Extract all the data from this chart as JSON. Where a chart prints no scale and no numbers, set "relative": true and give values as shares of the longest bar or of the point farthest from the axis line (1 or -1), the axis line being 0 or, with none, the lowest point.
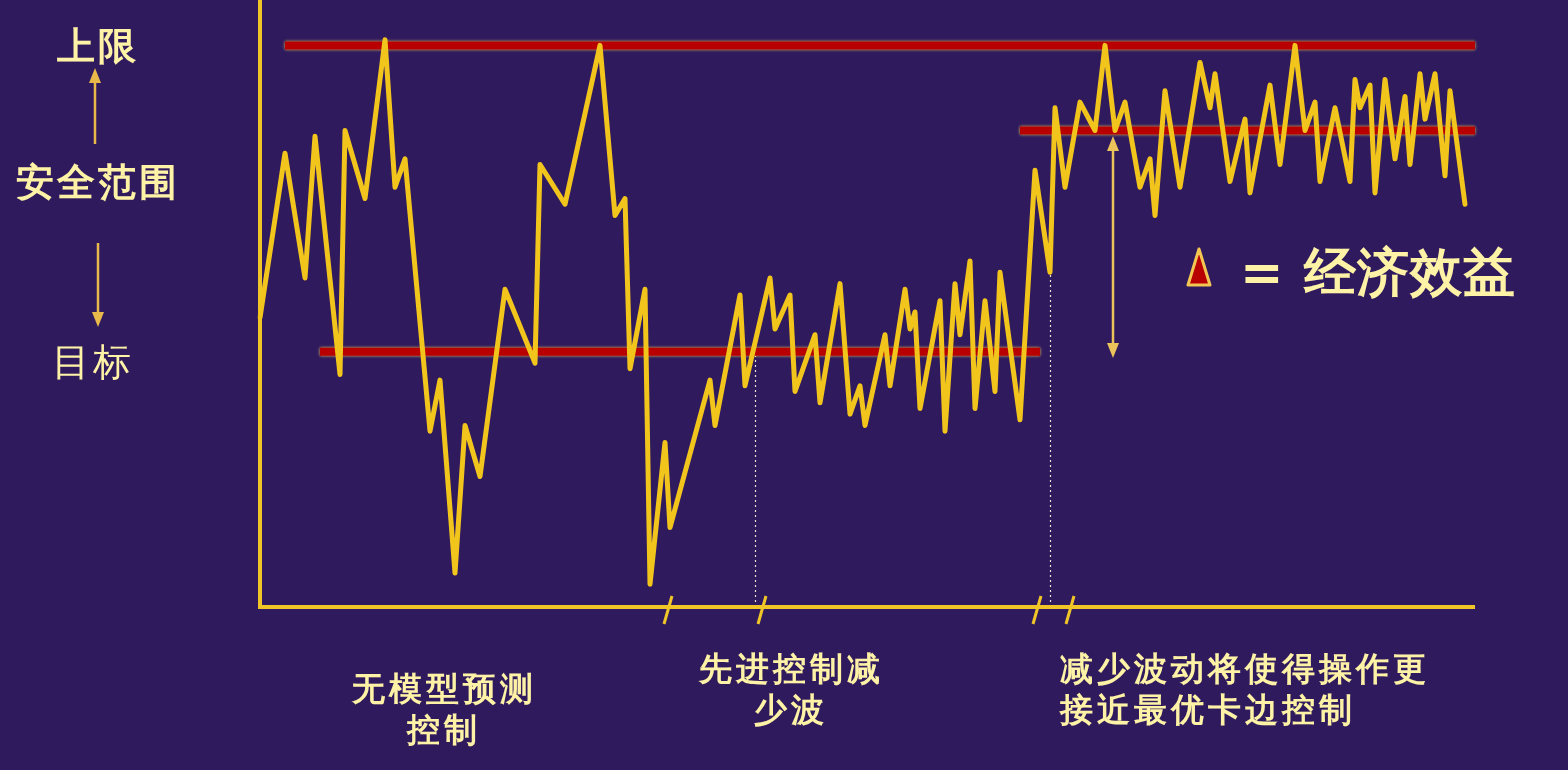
{
  "chart_data": {
    "type": "line",
    "relative": true,
    "annotations": [
      "上限",
      "安全范围",
      "目标",
      "= 经济效益",
      "无模型预测控制",
      "先进控制减少波",
      "减少波动将使得操作更接近最优卡边控制"
    ],
    "ref_lines": [
      {
        "axis": "y",
        "value": 0,
        "color": "#f0c528"
      }
    ],
    "categories": [
      null,
      null,
      null,
      null,
      null,
      null,
      null,
      null,
      null,
      null,
      null,
      null,
      null,
      null,
      null,
      null,
      null,
      null,
      null,
      null,
      null,
      null,
      null,
      null,
      null,
      null,
      null,
      null,
      null,
      null,
      null,
      null,
      null,
      null,
      null,
      null,
      null,
      null,
      null,
      null,
      null,
      null,
      null,
      null,
      null,
      null,
      null,
      null,
      null,
      null,
      null,
      null,
      null,
      null,
      null,
      null,
      null,
      null,
      null,
      null,
      null,
      null,
      null,
      null,
      null,
      null,
      null,
      null,
      null,
      null,
      null,
      null,
      null,
      null,
      null,
      null,
      null,
      null,
      null,
      null,
      null,
      null,
      null,
      null,
      null,
      null,
      null,
      null,
      null,
      null,
      null,
      null,
      null,
      null,
      null,
      null,
      null,
      null,
      null,
      null,
      null,
      null,
      null,
      null,
      null,
      null,
      null,
      null,
      null,
      null,
      null,
      null,
      null,
      null,
      null,
      null,
      null,
      null,
      null,
      null,
      null,
      null,
      null,
      null,
      null,
      null,
      null,
      null,
      null,
      null,
      null,
      null,
      null,
      null,
      null,
      null,
      null,
      null,
      null,
      null,
      null,
      null,
      null,
      null,
      null,
      null,
      null,
      null,
      null,
      null,
      null,
      null,
      null,
      null,
      null,
      null,
      null,
      null,
      null,
      null,
      null,
      null,
      null,
      null,
      null,
      null,
      null,
      null,
      null,
      null,
      null,
      null,
      null,
      null,
      null,
      null,
      null,
      null,
      null,
      null,
      null,
      null,
      null,
      null,
      null,
      null,
      null,
      null,
      null,
      null,
      null,
      null,
      null,
      null,
      null,
      null,
      null,
      null,
      null,
      null,
      null,
      null,
      null,
      null,
      null,
      null,
      null,
      null,
      null,
      null,
      null,
      null,
      null,
      null,
      null,
      null,
      null,
      null,
      null,
      null,
      null,
      null,
      null,
      null,
      null,
      null,
      null,
      null,
      null,
      null,
      null,
      null,
      null,
      null,
      null,
      null,
      null,
      null,
      null,
      null,
      null,
      null,
      null,
      null
    ],
    "series": [
      {
        "color": "#f2c51d",
        "values": [
          0.51,
          null,
          null,
          null,
          null,
          0.8,
          null,
          null,
          null,
          0.58,
          null,
          0.83,
          null,
          null,
          null,
          null,
          0.41,
          0.84,
          null,
          null,
          null,
          0.72,
          null,
          null,
          null,
          1,
          null,
          0.74,
          null,
          0.79,
          null,
          null,
          null,
          null,
          0.31,
          null,
          0.4,
          null,
          null,
          0.06,
          null,
          0.32,
          null,
          null,
          0.23,
          null,
          null,
          null,
          null,
          0.56,
          null,
          null,
          null,
          null,
          null,
          0.43,
          0.78,
          null,
          null,
          null,
          null,
          0.71,
          null,
          null,
          null,
          null,
          null,
          null,
          0.99,
          null,
          null,
          0.69,
          null,
          0.72,
          0.42,
          null,
          null,
          0.56,
          0.04,
          null,
          null,
          0.29,
          0.14,
          null,
          null,
          null,
          null,
          null,
          null,
          null,
          0.4,
          0.32,
          null,
          null,
          null,
          null,
          0.55,
          0.39,
          null,
          null,
          null,
          null,
          0.58,
          0.49,
          null,
          null,
          0.55,
          0.38,
          null,
          null,
          null,
          0.48,
          0.36,
          null,
          null,
          null,
          0.57,
          null,
          0.34,
          null,
          0.39,
          0.32,
          null,
          null,
          null,
          0.48,
          0.39,
          null,
          null,
          0.56,
          0.49,
          0.52,
          0.35,
          null,
          null,
          null,
          0.54,
          0.31,
          null,
          0.57,
          0.48,
          null,
          0.61,
          0.35,
          null,
          0.54,
          null,
          0.38,
          0.59,
          null,
          null,
          null,
          0.33,
          null,
          null,
          0.77,
          null,
          null,
          0.59,
          0.88,
          null,
          0.74,
          null,
          null,
          0.89,
          null,
          null,
          0.84,
          null,
          0.99,
          null,
          0.84,
          null,
          0.89,
          null,
          null,
          0.74,
          null,
          0.79,
          0.69,
          null,
          0.91,
          null,
          null,
          0.74,
          null,
          null,
          null,
          0.96,
          null,
          0.88,
          0.94,
          null,
          null,
          0.75,
          null,
          null,
          0.86,
          0.73,
          null,
          null,
          null,
          0.92,
          null,
          0.78,
          null,
          null,
          0.99,
          null,
          0.84,
          null,
          0.89,
          0.75,
          null,
          null,
          0.88,
          null,
          null,
          0.75,
          0.93,
          0.88,
          null,
          0.92,
          0.73,
          null,
          0.93,
          null,
          0.79,
          null,
          0.9,
          0.78,
          null,
          0.94,
          0.86,
          null,
          0.94,
          null,
          0.76,
          0.91,
          null,
          null,
          0.71,
          null,
          null
        ]
      },
      {
        "color": "#b80000",
        "values": [
          null,
          null,
          null,
          null,
          null,
          0.99,
          0.99,
          0.99,
          0.99,
          0.99,
          0.99,
          0.99,
          0.99,
          0.99,
          0.99,
          0.99,
          0.99,
          0.99,
          0.99,
          0.99,
          0.99,
          0.99,
          0.99,
          0.99,
          0.99,
          0.99,
          0.99,
          0.99,
          0.99,
          0.99,
          0.99,
          0.99,
          0.99,
          0.99,
          0.99,
          0.99,
          0.99,
          0.99,
          0.99,
          0.99,
          0.99,
          0.99,
          0.99,
          0.99,
          0.99,
          0.99,
          0.99,
          0.99,
          0.99,
          0.99,
          0.99,
          0.99,
          0.99,
          0.99,
          0.99,
          0.99,
          0.99,
          0.99,
          0.99,
          0.99,
          0.99,
          0.99,
          0.99,
          0.99,
          0.99,
          0.99,
          0.99,
          0.99,
          0.99,
          0.99,
          0.99,
          0.99,
          0.99,
          0.99,
          0.99,
          0.99,
          0.99,
          0.99,
          0.99,
          0.99,
          0.99,
          0.99,
          0.99,
          0.99,
          0.99,
          0.99,
          0.99,
          0.99,
          0.99,
          0.99,
          0.99,
          0.99,
          0.99,
          0.99,
          0.99,
          0.99,
          0.99,
          0.99,
          0.99,
          0.99,
          0.99,
          0.99,
          0.99,
          0.99,
          0.99,
          0.99,
          0.99,
          0.99,
          0.99,
          0.99,
          0.99,
          0.99,
          0.99,
          0.99,
          0.99,
          0.99,
          0.99,
          0.99,
          0.99,
          0.99,
          0.99,
          0.99,
          0.99,
          0.99,
          0.99,
          0.99,
          0.99,
          0.99,
          0.99,
          0.99,
          0.99,
          0.99,
          0.99,
          0.99,
          0.99,
          0.99,
          0.99,
          0.99,
          0.99,
          0.99,
          0.99,
          0.99,
          0.99,
          0.99,
          0.99,
          0.99,
          0.99,
          0.99,
          0.99,
          0.99,
          0.99,
          0.99,
          0.99,
          0.99,
          0.99,
          0.99,
          0.99,
          0.99,
          0.99,
          0.99,
          0.99,
          0.99,
          0.99,
          0.99,
          0.99,
          0.99,
          0.99,
          0.99,
          0.99,
          0.99,
          0.99,
          0.99,
          0.99,
          0.99,
          0.99,
          0.99,
          0.99,
          0.99,
          0.99,
          0.99,
          0.99,
          0.99,
          0.99,
          0.99,
          0.99,
          0.99,
          0.99,
          0.99,
          0.99,
          0.99,
          0.99,
          0.99,
          0.99,
          0.99,
          0.99,
          0.99,
          0.99,
          0.99,
          0.99,
          0.99,
          0.99,
          0.99,
          0.99,
          0.99,
          0.99,
          0.99,
          0.99,
          0.99,
          0.99,
          0.99,
          0.99,
          0.99,
          0.99,
          0.99,
          0.99,
          0.99,
          0.99,
          0.99,
          0.99,
          0.99,
          0.99,
          0.99,
          0.99,
          0.99,
          0.99,
          0.99,
          0.99,
          0.99,
          0.99,
          0.99,
          0.99,
          0.99,
          0.99,
          0.99,
          0.99,
          0.99,
          0.99,
          0.99,
          0.99,
          0.99,
          0.99,
          0.99,
          0.99,
          0.99
        ]
      },
      {
        "color": "#b80000",
        "values": [
          null,
          null,
          null,
          null,
          null,
          null,
          null,
          null,
          null,
          null,
          null,
          null,
          0.45,
          0.45,
          0.45,
          0.45,
          0.45,
          0.45,
          0.45,
          0.45,
          0.45,
          0.45,
          0.45,
          0.45,
          0.45,
          0.45,
          0.45,
          0.45,
          0.45,
          0.45,
          0.45,
          0.45,
          0.45,
          0.45,
          0.45,
          0.45,
          0.45,
          0.45,
          0.45,
          0.45,
          0.45,
          0.45,
          0.45,
          0.45,
          0.45,
          0.45,
          0.45,
          0.45,
          0.45,
          0.45,
          0.45,
          0.45,
          0.45,
          0.45,
          0.45,
          0.45,
          0.45,
          0.45,
          0.45,
          0.45,
          0.45,
          0.45,
          0.45,
          0.45,
          0.45,
          0.45,
          0.45,
          0.45,
          0.45,
          0.45,
          0.45,
          0.45,
          0.45,
          0.45,
          0.45,
          0.45,
          0.45,
          0.45,
          0.45,
          0.45,
          0.45,
          0.45,
          0.45,
          0.45,
          0.45,
          0.45,
          0.45,
          0.45,
          0.45,
          0.45,
          0.45,
          0.45,
          0.45,
          0.45,
          0.45,
          0.45,
          0.45,
          0.45,
          0.45,
          0.45,
          0.45,
          0.45,
          0.45,
          0.45,
          0.45,
          0.45,
          0.45,
          0.45,
          0.45,
          0.45,
          0.45,
          0.45,
          0.45,
          0.45,
          0.45,
          0.45,
          0.45,
          0.45,
          0.45,
          0.45,
          0.45,
          0.45,
          0.45,
          0.45,
          0.45,
          0.45,
          0.45,
          0.45,
          0.45,
          0.45,
          0.45,
          0.45,
          0.45,
          0.45,
          0.45,
          0.45,
          0.45,
          0.45,
          0.45,
          0.45,
          0.45,
          0.45,
          0.45,
          0.45,
          0.45,
          0.45,
          0.45,
          0.45,
          0.45,
          0.45,
          0.45,
          0.45,
          0.45,
          0.45,
          0.45,
          0.45,
          0.45,
          null,
          null,
          null,
          null,
          null,
          null,
          null,
          null,
          null,
          null,
          null,
          null,
          null,
          null,
          null,
          null,
          null,
          null,
          null,
          null,
          null,
          null,
          null,
          null,
          null,
          null,
          null,
          null,
          null,
          null,
          null,
          null,
          null,
          null,
          null,
          null,
          null,
          null,
          null,
          null,
          null,
          null,
          null,
          null,
          null,
          null,
          null,
          null,
          null,
          null,
          null,
          null,
          null,
          null,
          null,
          null,
          null,
          null,
          null,
          null,
          null,
          null,
          null,
          null,
          null,
          null,
          null,
          null,
          null,
          null,
          null,
          null,
          null,
          null,
          null,
          null,
          null,
          null,
          null,
          null,
          null,
          null,
          null,
          null,
          null,
          null,
          null
        ]
      },
      {
        "color": "#b80000",
        "values": [
          null,
          null,
          null,
          null,
          null,
          null,
          null,
          null,
          null,
          null,
          null,
          null,
          null,
          null,
          null,
          null,
          null,
          null,
          null,
          null,
          null,
          null,
          null,
          null,
          null,
          null,
          null,
          null,
          null,
          null,
          null,
          null,
          null,
          null,
          null,
          null,
          null,
          null,
          null,
          null,
          null,
          null,
          null,
          null,
          null,
          null,
          null,
          null,
          null,
          null,
          null,
          null,
          null,
          null,
          null,
          null,
          null,
          null,
          null,
          null,
          null,
          null,
          null,
          null,
          null,
          null,
          null,
          null,
          null,
          null,
          null,
          null,
          null,
          null,
          null,
          null,
          null,
          null,
          null,
          null,
          null,
          null,
          null,
          null,
          null,
          null,
          null,
          null,
          null,
          null,
          null,
          null,
          null,
          null,
          null,
          null,
          null,
          null,
          null,
          null,
          null,
          null,
          null,
          null,
          null,
          null,
          null,
          null,
          null,
          null,
          null,
          null,
          null,
          null,
          null,
          null,
          null,
          null,
          null,
          null,
          null,
          null,
          null,
          null,
          null,
          null,
          null,
          null,
          null,
          null,
          null,
          null,
          null,
          null,
          null,
          null,
          null,
          null,
          null,
          null,
          null,
          null,
          null,
          null,
          null,
          null,
          null,
          null,
          null,
          null,
          null,
          null,
          0.84,
          0.84,
          0.84,
          0.84,
          0.84,
          0.84,
          0.84,
          0.84,
          0.84,
          0.84,
          0.84,
          0.84,
          0.84,
          0.84,
          0.84,
          0.84,
          0.84,
          0.84,
          0.84,
          0.84,
          0.84,
          0.84,
          0.84,
          0.84,
          0.84,
          0.84,
          0.84,
          0.84,
          0.84,
          0.84,
          0.84,
          0.84,
          0.84,
          0.84,
          0.84,
          0.84,
          0.84,
          0.84,
          0.84,
          0.84,
          0.84,
          0.84,
          0.84,
          0.84,
          0.84,
          0.84,
          0.84,
          0.84,
          0.84,
          0.84,
          0.84,
          0.84,
          0.84,
          0.84,
          0.84,
          0.84,
          0.84,
          0.84,
          0.84,
          0.84,
          0.84,
          0.84,
          0.84,
          0.84,
          0.84,
          0.84,
          0.84,
          0.84,
          0.84,
          0.84,
          0.84,
          0.84,
          0.84,
          0.84,
          0.84,
          0.84,
          0.84,
          0.84,
          0.84,
          0.84,
          0.84,
          0.84,
          0.84,
          0.84,
          0.84,
          0.84,
          0.84,
          0.84,
          0.84,
          0.84,
          0.84,
          0.84
        ]
      }
    ]
  }
}
